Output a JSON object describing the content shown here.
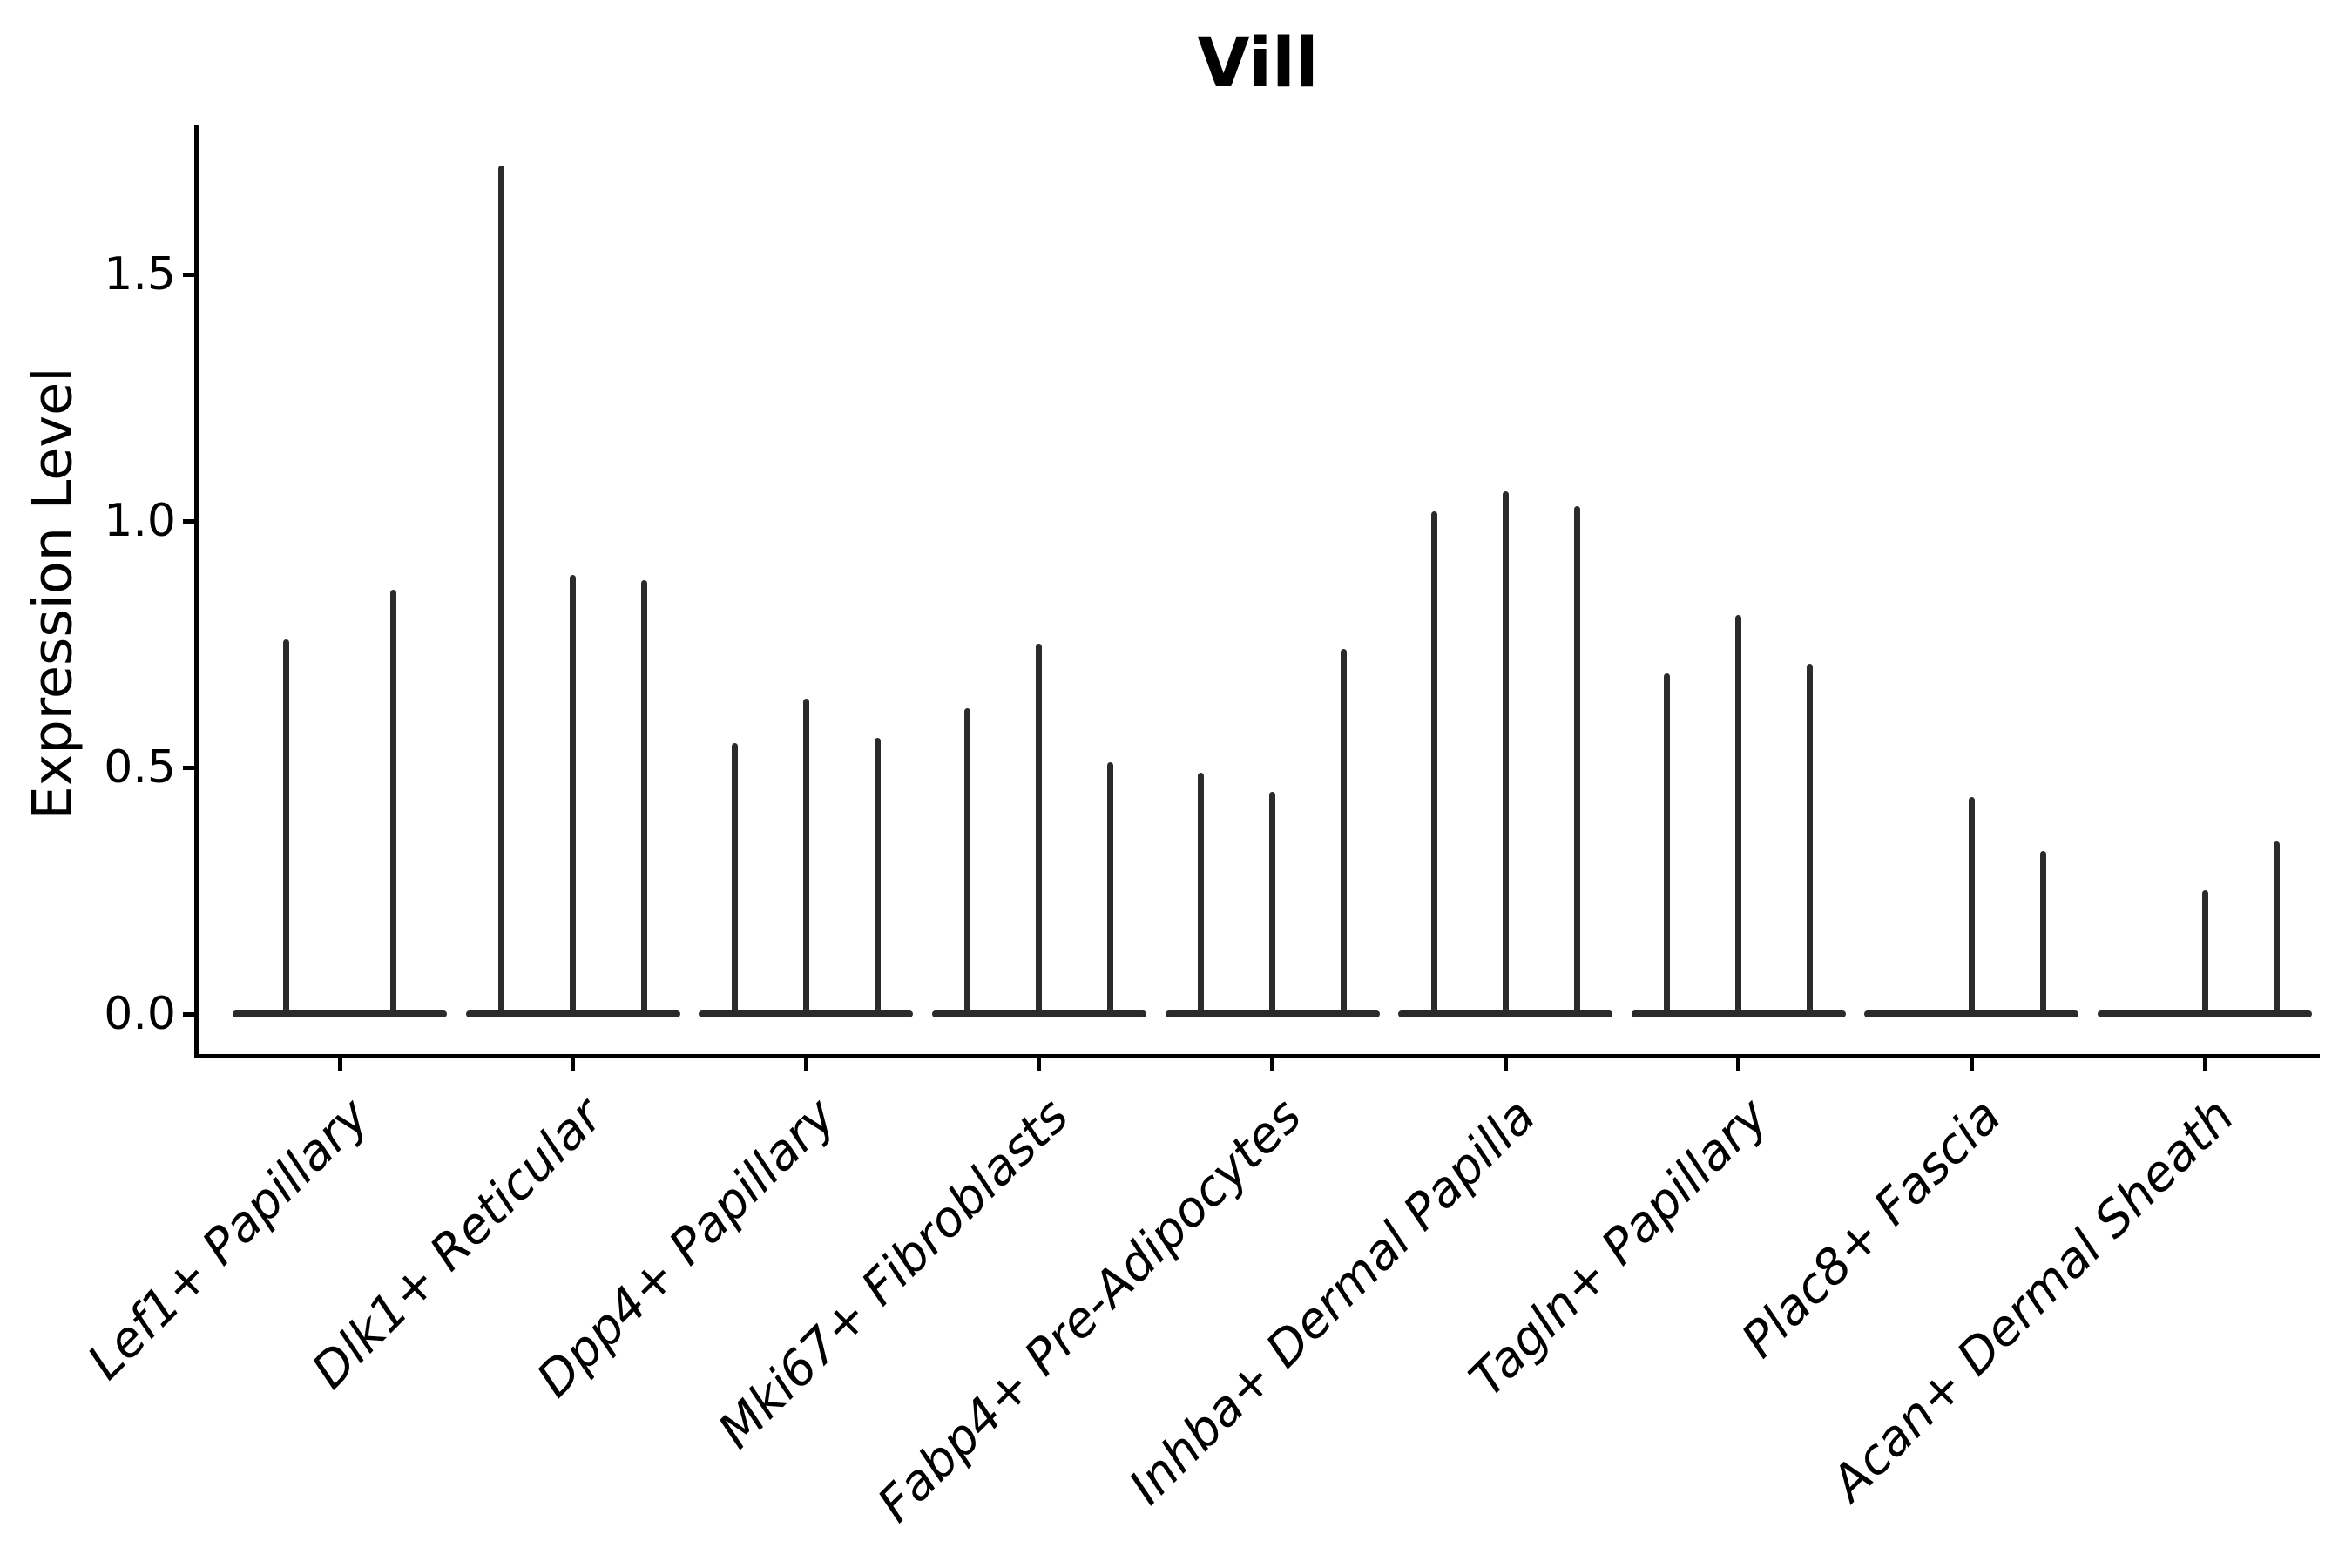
{
  "title": "Vill",
  "ylabel": "Expression Level",
  "chart_data": {
    "type": "violin",
    "title": "Vill",
    "xlabel": "",
    "ylabel": "Expression Level",
    "ylim": [
      -0.09,
      1.81
    ],
    "yticks": [
      "0.0",
      "0.5",
      "1.0",
      "1.5"
    ],
    "ytick_values": [
      0.0,
      0.5,
      1.0,
      1.5
    ],
    "grid": false,
    "legend_position": "none",
    "line_color": "#2b2b2b",
    "axis_color": "#000000",
    "categories": [
      "Lef1+ Papillary",
      "Dlk1+ Reticular",
      "Dpp4+ Papillary",
      "Mki67+ Fibroblasts",
      "Fabp4+ Pre-Adipocytes",
      "Inhba+ Dermal Papilla",
      "Tagln+ Papillary",
      "Plac8+ Fascia",
      "Acan+ Dermal Sheath"
    ],
    "groups": [
      {
        "category": "Lef1+ Papillary",
        "violin_peak_expression": [
          0.76,
          0.86
        ]
      },
      {
        "category": "Dlk1+ Reticular",
        "violin_peak_expression": [
          1.72,
          0.89,
          0.88
        ]
      },
      {
        "category": "Dpp4+ Papillary",
        "violin_peak_expression": [
          0.55,
          0.64,
          0.56
        ]
      },
      {
        "category": "Mki67+ Fibroblasts",
        "violin_peak_expression": [
          0.62,
          0.75,
          0.51
        ]
      },
      {
        "category": "Fabp4+ Pre-Adipocytes",
        "violin_peak_expression": [
          0.49,
          0.45,
          0.74
        ]
      },
      {
        "category": "Inhba+ Dermal Papilla",
        "violin_peak_expression": [
          1.02,
          1.06,
          1.03
        ]
      },
      {
        "category": "Tagln+ Papillary",
        "violin_peak_expression": [
          0.69,
          0.81,
          0.71
        ]
      },
      {
        "category": "Plac8+ Fascia",
        "violin_peak_expression": [
          0.0,
          0.44,
          0.33
        ]
      },
      {
        "category": "Acan+ Dermal Sheath",
        "violin_peak_expression": [
          0.0,
          0.25,
          0.35
        ]
      }
    ]
  }
}
